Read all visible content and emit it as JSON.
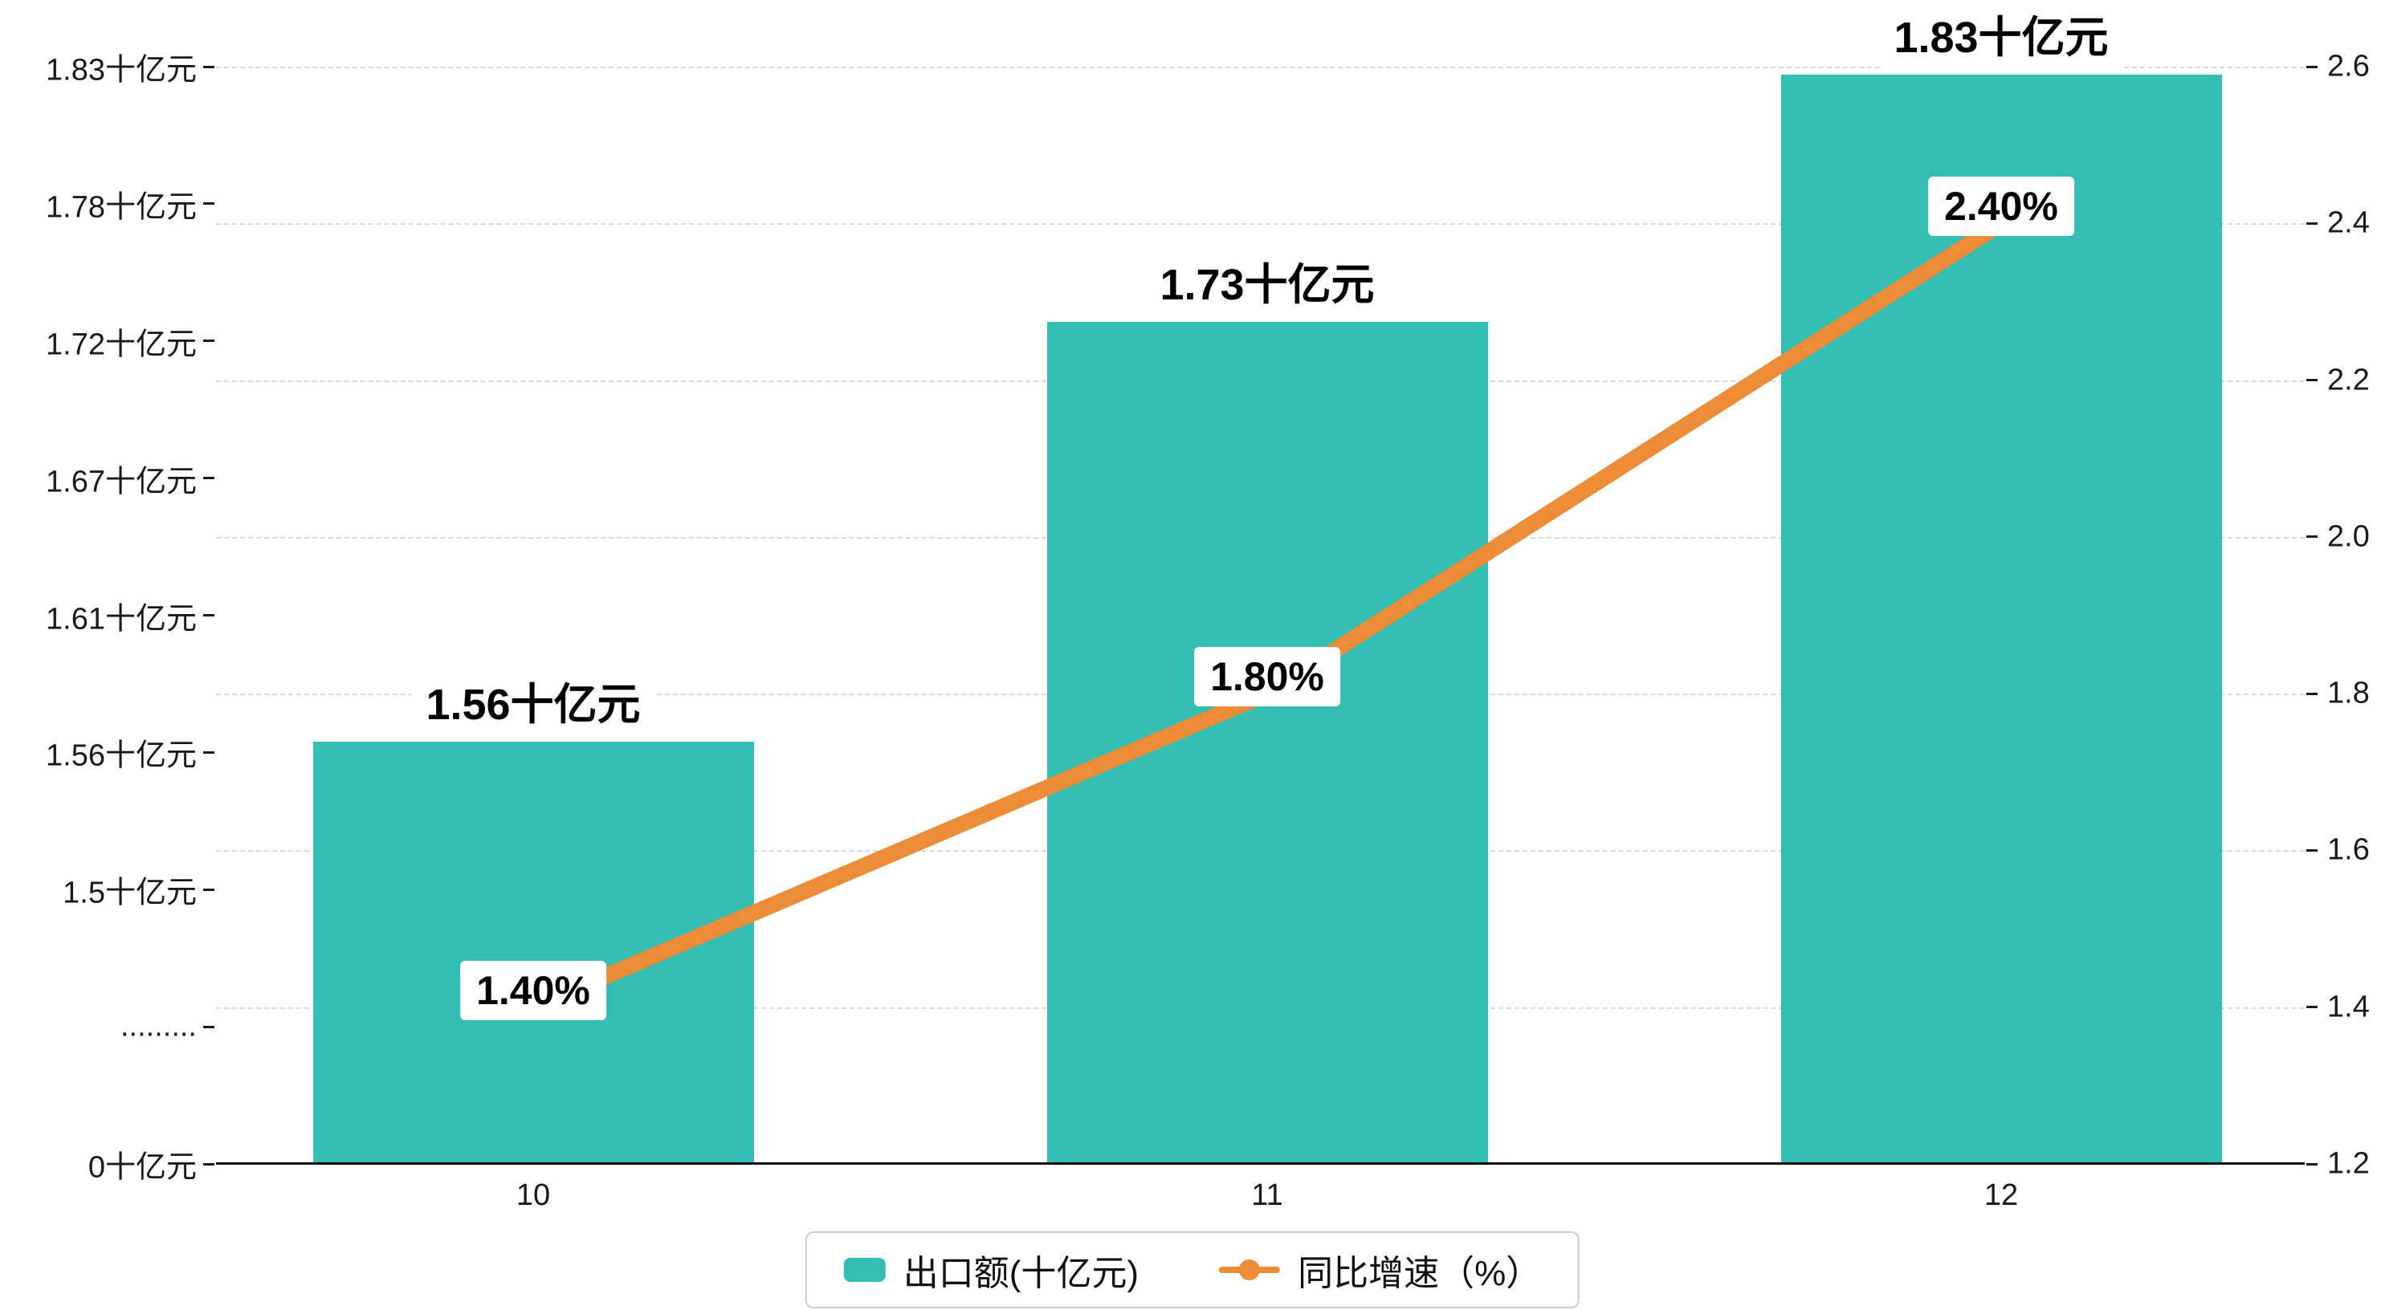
{
  "chart_data": {
    "type": "bar+line",
    "categories": [
      "10",
      "11",
      "12"
    ],
    "series": [
      {
        "name": "出口额(十亿元)",
        "type": "bar",
        "yaxis": "left",
        "color": "#32beb3",
        "values": [
          1.56,
          1.73,
          1.83
        ],
        "labels": [
          "1.56十亿元",
          "1.73十亿元",
          "1.83十亿元"
        ]
      },
      {
        "name": "同比增速（%）",
        "type": "line",
        "yaxis": "right",
        "color": "#ee8b36",
        "values": [
          1.4,
          1.8,
          2.4
        ],
        "labels": [
          "1.40%",
          "1.80%",
          "2.40%"
        ]
      }
    ],
    "left_axis": {
      "tick_labels": [
        "1.83十亿元",
        "1.78十亿元",
        "1.72十亿元",
        "1.67十亿元",
        "1.61十亿元",
        "1.56十亿元",
        "1.5十亿元",
        ".........",
        "0十亿元"
      ],
      "visible_min": 1.5,
      "visible_max": 1.8333,
      "break": true
    },
    "right_axis": {
      "tick_labels": [
        "2.6",
        "2.4",
        "2.2",
        "2.0",
        "1.8",
        "1.6",
        "1.4",
        "1.2"
      ],
      "min": 1.2,
      "max": 2.6
    },
    "grid": "dashed-horizontal",
    "legend_position": "bottom-center",
    "legend": [
      {
        "label": "出口额(十亿元)",
        "color": "#32beb3",
        "type": "bar"
      },
      {
        "label": "同比增速（%）",
        "color": "#ee8b36",
        "type": "line"
      }
    ]
  }
}
